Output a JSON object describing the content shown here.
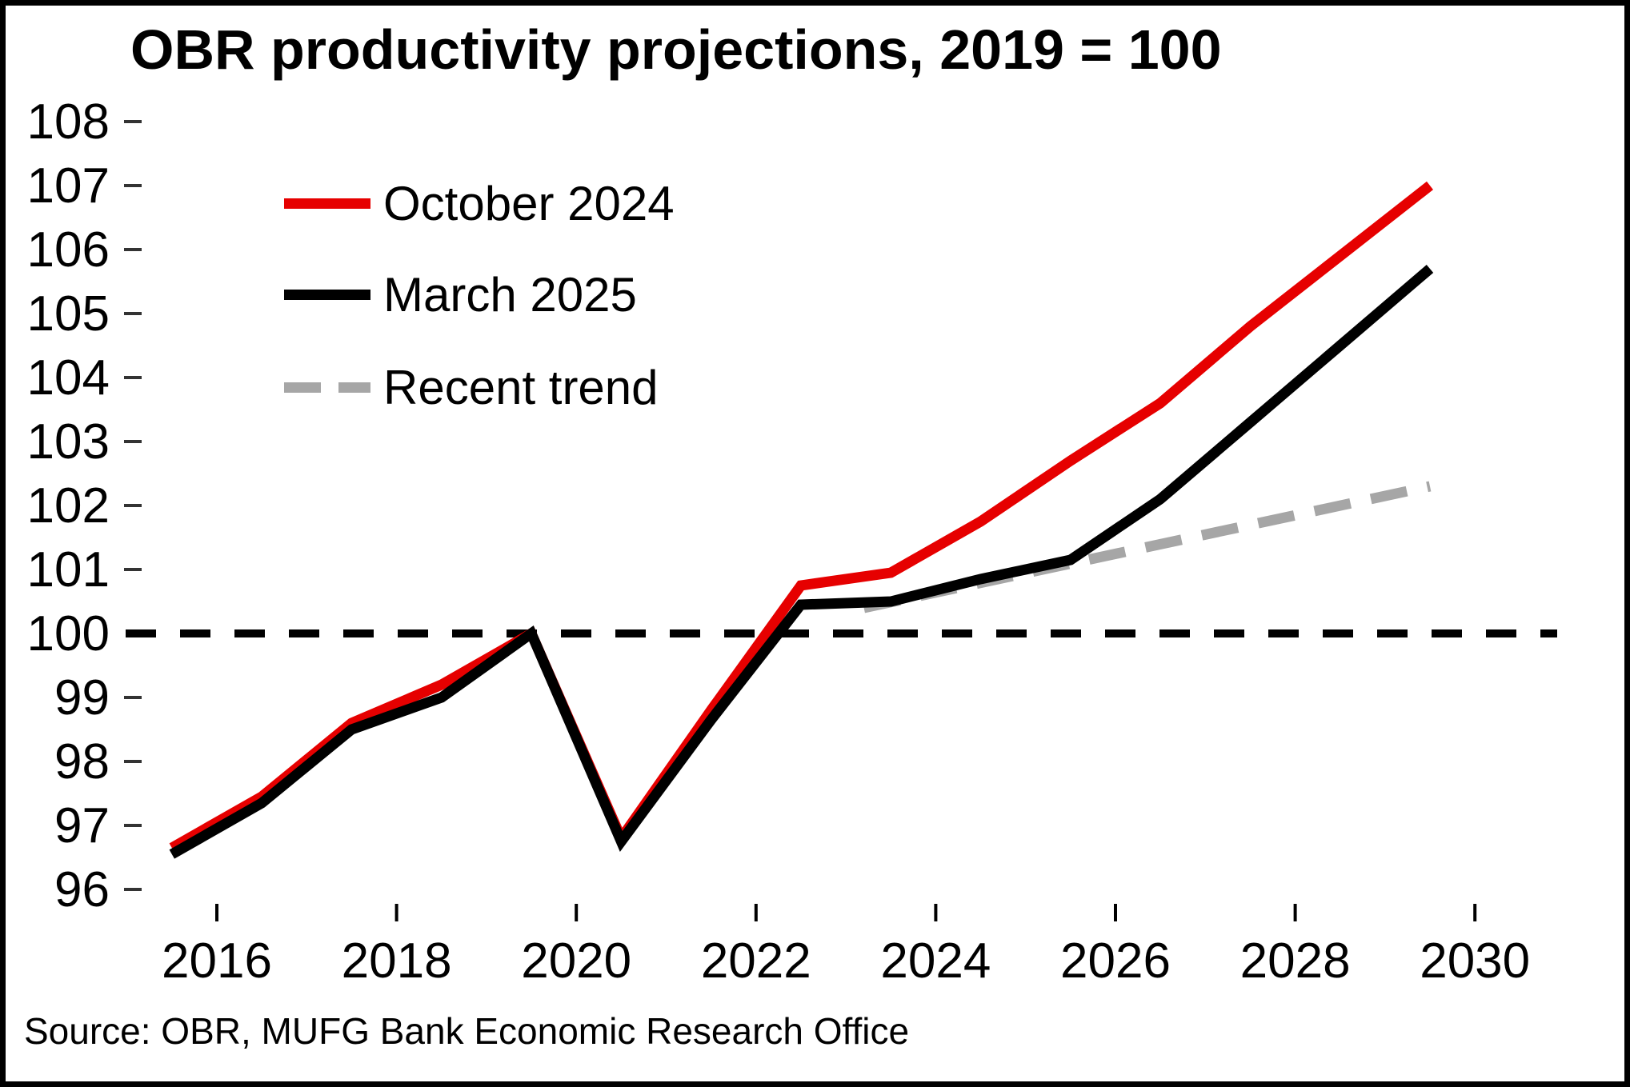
{
  "title": "OBR productivity projections, 2019 = 100",
  "source": "Source: OBR, MUFG Bank Economic Research Office",
  "legend": [
    {
      "label": "October 2024",
      "color": "#e60000",
      "style": "solid"
    },
    {
      "label": "March 2025",
      "color": "#000000",
      "style": "solid"
    },
    {
      "label": "Recent trend",
      "color": "#a6a6a6",
      "style": "dashed"
    }
  ],
  "chart_data": {
    "type": "line",
    "title": "OBR productivity projections, 2019 = 100",
    "xlabel": "",
    "ylabel": "",
    "xlim": [
      2015,
      2031
    ],
    "ylim": [
      95.5,
      108.5
    ],
    "grid": false,
    "legend_position": "upper-left-inside",
    "xticks": [
      2016,
      2018,
      2020,
      2022,
      2024,
      2026,
      2028,
      2030
    ],
    "yticks": [
      96,
      97,
      98,
      99,
      100,
      101,
      102,
      103,
      104,
      105,
      106,
      107,
      108
    ],
    "reference_line": {
      "y": 100,
      "color": "#000000",
      "style": "dashed"
    },
    "x": [
      2015.5,
      2016.5,
      2017.5,
      2018.5,
      2019.5,
      2020.5,
      2021.5,
      2022.5,
      2023.5,
      2024.5,
      2025.5,
      2026.5,
      2027.5,
      2028.5,
      2029.5
    ],
    "series": [
      {
        "name": "October 2024",
        "color": "#e60000",
        "dash": "solid",
        "values": [
          96.65,
          97.45,
          98.6,
          99.2,
          100.0,
          96.8,
          98.8,
          100.75,
          100.95,
          101.75,
          102.7,
          103.6,
          104.8,
          105.9,
          107.0
        ]
      },
      {
        "name": "March 2025",
        "color": "#000000",
        "dash": "solid",
        "values": [
          96.55,
          97.35,
          98.5,
          99.0,
          100.0,
          96.75,
          98.65,
          100.45,
          100.5,
          100.85,
          101.15,
          102.1,
          103.3,
          104.5,
          105.7
        ]
      },
      {
        "name": "Recent trend",
        "color": "#a6a6a6",
        "dash": "dashed",
        "x": [
          2023.2,
          2029.5
        ],
        "values": [
          100.4,
          102.3
        ]
      }
    ]
  }
}
